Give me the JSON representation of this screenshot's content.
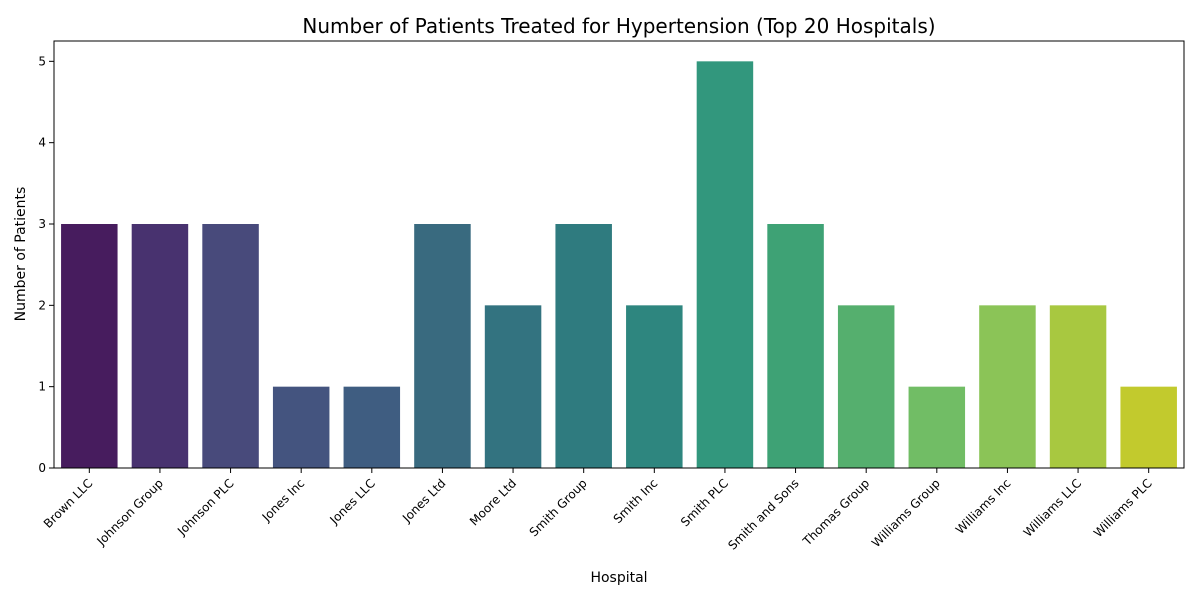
{
  "chart_data": {
    "type": "bar",
    "title": "Number of Patients Treated for Hypertension (Top 20 Hospitals)",
    "xlabel": "Hospital",
    "ylabel": "Number of Patients",
    "categories": [
      "Brown LLC",
      "Johnson Group",
      "Johnson PLC",
      "Jones Inc",
      "Jones LLC",
      "Jones Ltd",
      "Moore Ltd",
      "Smith Group",
      "Smith Inc",
      "Smith PLC",
      "Smith and Sons",
      "Thomas Group",
      "Williams Group",
      "Williams Inc",
      "Williams LLC",
      "Williams PLC"
    ],
    "values": [
      3,
      3,
      3,
      1,
      1,
      3,
      2,
      3,
      2,
      5,
      3,
      2,
      1,
      2,
      2,
      1
    ],
    "colors": [
      "#471c5e",
      "#48326f",
      "#484a7b",
      "#44547f",
      "#3f5d81",
      "#396a7f",
      "#337380",
      "#2f7b7f",
      "#2e867f",
      "#32977d",
      "#3ea275",
      "#55af6e",
      "#71bd65",
      "#8bc457",
      "#a8c840",
      "#c2ca2d"
    ],
    "yticks": [
      "0",
      "1",
      "2",
      "3",
      "4",
      "5"
    ],
    "ylim": [
      0,
      5.25
    ],
    "grid": false,
    "legend": "none"
  }
}
